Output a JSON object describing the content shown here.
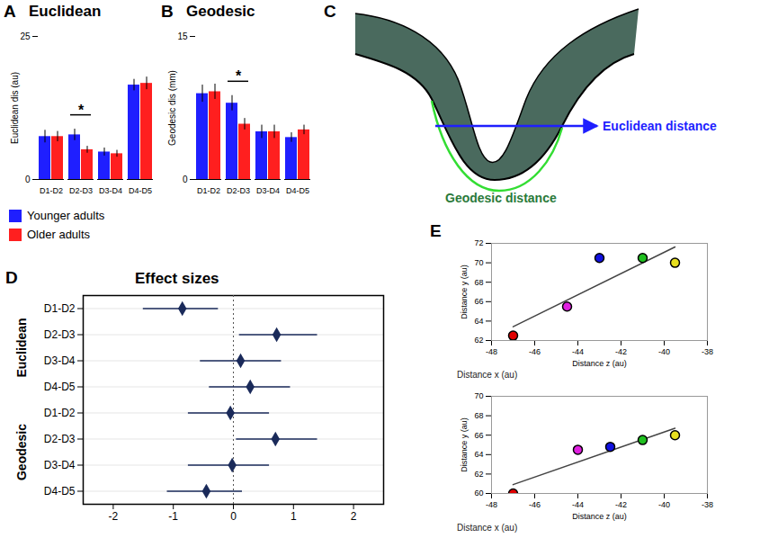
{
  "chart_data": [
    {
      "panel": "A",
      "type": "bar",
      "title": "Euclidean",
      "ylabel": "Euclidean dis (au)",
      "categories": [
        "D1-D2",
        "D2-D3",
        "D3-D4",
        "D4-D5"
      ],
      "series": [
        {
          "name": "Younger adults",
          "color": "#1f1fff",
          "values": [
            7.5,
            7.8,
            4.8,
            16.5
          ],
          "errors": [
            1.1,
            1.0,
            0.7,
            1.0
          ]
        },
        {
          "name": "Older adults",
          "color": "#ff1f1f",
          "values": [
            7.5,
            5.2,
            4.5,
            16.8
          ],
          "errors": [
            0.9,
            0.6,
            0.6,
            1.1
          ]
        }
      ],
      "ylim": [
        0,
        25
      ],
      "yticks": [
        0,
        25
      ],
      "annotations": [
        {
          "category": "D2-D3",
          "text": "*"
        }
      ],
      "legend": "bottom"
    },
    {
      "panel": "B",
      "type": "bar",
      "title": "Geodesic",
      "ylabel": "Geodesic dis (mm)",
      "categories": [
        "D1-D2",
        "D2-D3",
        "D3-D4",
        "D4-D5"
      ],
      "series": [
        {
          "name": "Younger adults",
          "color": "#1f1fff",
          "values": [
            9.0,
            8.0,
            5.0,
            4.4
          ],
          "errors": [
            0.9,
            0.8,
            0.7,
            0.5
          ]
        },
        {
          "name": "Older adults",
          "color": "#ff1f1f",
          "values": [
            9.2,
            5.8,
            5.0,
            5.2
          ],
          "errors": [
            0.8,
            0.6,
            0.7,
            0.5
          ]
        }
      ],
      "ylim": [
        0,
        15
      ],
      "yticks": [
        0,
        15
      ],
      "annotations": [
        {
          "category": "D2-D3",
          "text": "*"
        }
      ]
    },
    {
      "panel": "D",
      "type": "forest",
      "title": "Effect sizes",
      "color": "#1a2a5a",
      "series": [
        {
          "name": "Euclidean",
          "categories": [
            "D1-D2",
            "D2-D3",
            "D3-D4",
            "D4-D5"
          ],
          "values": [
            -0.85,
            0.72,
            0.12,
            0.28
          ],
          "ci_low": [
            -1.5,
            0.1,
            -0.55,
            -0.4
          ],
          "ci_high": [
            -0.25,
            1.4,
            0.8,
            0.95
          ]
        },
        {
          "name": "Geodesic",
          "categories": [
            "D1-D2",
            "D2-D3",
            "D3-D4",
            "D4-D5"
          ],
          "values": [
            -0.05,
            0.7,
            -0.02,
            -0.45
          ],
          "ci_low": [
            -0.75,
            0.05,
            -0.75,
            -1.1
          ],
          "ci_high": [
            0.6,
            1.4,
            0.6,
            0.15
          ]
        }
      ],
      "xlim": [
        -2.5,
        2.5
      ],
      "xticks": [
        -2,
        -1,
        0,
        1,
        2
      ],
      "reference_line": 0,
      "grid": true
    },
    {
      "panel": "E",
      "type": "scatter",
      "xlabel": "Distance z (au)",
      "ylabel": "Distance y (au)",
      "depth_label": "Distance x (au)",
      "x": [
        -47,
        -44.5,
        -43,
        -41,
        -39.5
      ],
      "values": [
        62.5,
        65.5,
        70.5,
        70.5,
        70
      ],
      "colors": [
        "#e00000",
        "#e020e0",
        "#1010e0",
        "#20c020",
        "#e8e020"
      ],
      "xlim": [
        -48,
        -38
      ],
      "xticks": [
        -48,
        -46,
        -44,
        -42,
        -40,
        -38
      ],
      "ylim": [
        62,
        72
      ],
      "yticks": [
        62,
        64,
        66,
        68,
        70,
        72
      ]
    },
    {
      "type": "scatter",
      "xlabel": "Distance z (au)",
      "ylabel": "Distance y (au)",
      "depth_label": "Distance x (au)",
      "x": [
        -47,
        -44,
        -42.5,
        -41,
        -39.5
      ],
      "values": [
        60,
        64.5,
        64.8,
        65.5,
        66
      ],
      "colors": [
        "#e00000",
        "#e020e0",
        "#1010e0",
        "#20c020",
        "#e8e020"
      ],
      "xlim": [
        -48,
        -38
      ],
      "xticks": [
        -48,
        -46,
        -44,
        -42,
        -40,
        -38
      ],
      "ylim": [
        60,
        70
      ],
      "yticks": [
        60,
        62,
        64,
        66,
        68,
        70
      ]
    }
  ],
  "diagram": {
    "panel": "C",
    "labels": {
      "euclidean": "Euclidean distance",
      "geodesic": "Geodesic distance"
    }
  }
}
